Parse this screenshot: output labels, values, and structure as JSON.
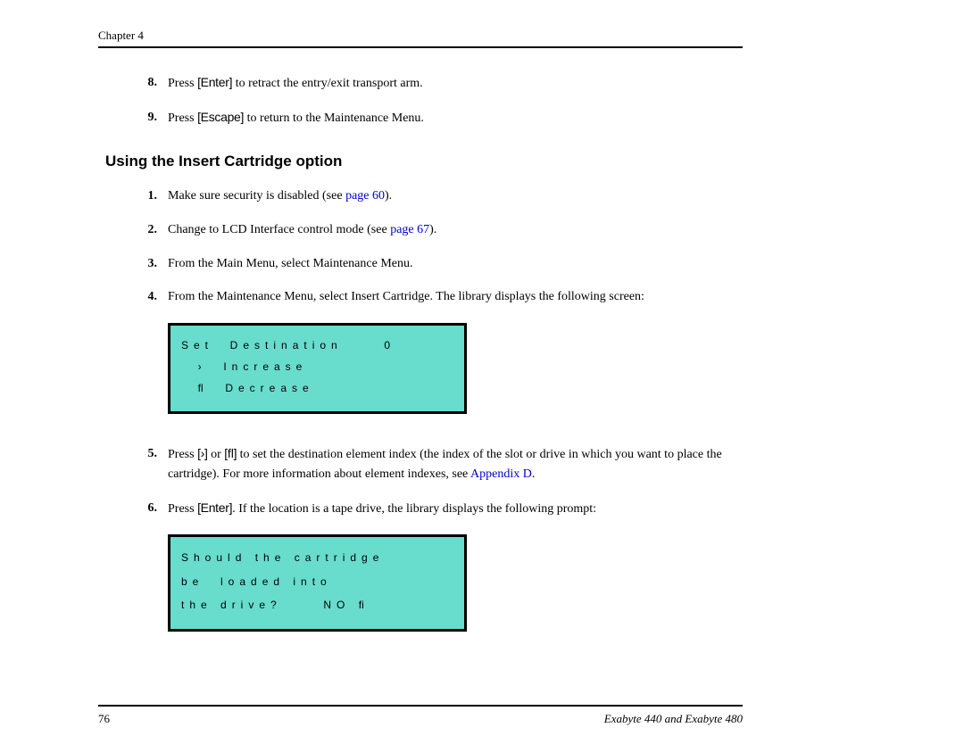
{
  "header": {
    "chapter": "Chapter 4"
  },
  "steps_pre": [
    {
      "num": "8.",
      "pre": "Press ",
      "btn": "[Enter]",
      "post": " to retract the entry/exit transport arm."
    },
    {
      "num": "9.",
      "pre": "Press ",
      "btn": "[Escape]",
      "post": " to return to the Maintenance Menu."
    }
  ],
  "section_title": "Using the Insert Cartridge option",
  "steps": [
    {
      "num": "1.",
      "text_pre": "Make sure security is disabled (see ",
      "link": "page 60",
      "text_post": ")."
    },
    {
      "num": "2.",
      "text_pre": "Change to LCD Interface control mode (see ",
      "link": "page 67",
      "text_post": ")."
    },
    {
      "num": "3.",
      "text": "From the Main Menu, select Maintenance Menu."
    },
    {
      "num": "4.",
      "text": "From the Maintenance Menu, select Insert Cartridge. The library displays the following screen:"
    }
  ],
  "lcd1": {
    "bg_color": "#68dccd",
    "border_color": "#000000",
    "rows": [
      "Set  Destination     0",
      "  ›  Increase",
      "  ﬂ  Decrease"
    ]
  },
  "step5": {
    "num": "5.",
    "pre": "Press ",
    "btn1": "[›]",
    "mid1": " or ",
    "btn2": "[ﬂ]",
    "mid2": " to set the destination element index (the index of the slot or drive in which you want to place the cartridge). For more information about element indexes, see ",
    "link": "Appendix D",
    "post": "."
  },
  "step6": {
    "num": "6.",
    "pre": "Press ",
    "btn": "[Enter]",
    "post": ". If the location is a tape drive, the library displays the following prompt:"
  },
  "lcd2": {
    "bg_color": "#68dccd",
    "border_color": "#000000",
    "rows": [
      "Should the cartridge",
      "be  loaded into",
      "the drive?     NO ﬁ"
    ]
  },
  "footer": {
    "page": "76",
    "title": "Exabyte 440 and Exabyte 480"
  }
}
